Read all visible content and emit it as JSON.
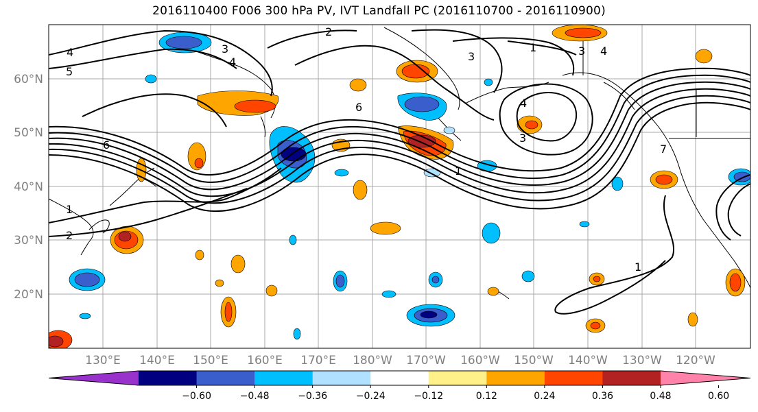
{
  "title": "2016110400 F006 300 hPa PV, IVT Landfall PC (2016110700 - 2016110900)",
  "lon_labels": [
    "130°E",
    "140°E",
    "150°E",
    "160°E",
    "170°E",
    "180°W",
    "170°W",
    "160°W",
    "150°W",
    "140°W",
    "130°W",
    "120°W"
  ],
  "lat_labels": [
    "60°N",
    "50°N",
    "40°N",
    "30°N",
    "20°N"
  ],
  "colorbar": {
    "ticks": [
      "−0.60",
      "−0.48",
      "−0.36",
      "−0.24",
      "−0.12",
      "0.12",
      "0.24",
      "0.36",
      "0.48",
      "0.60"
    ],
    "colors": [
      "#9932cc",
      "#000080",
      "#3a5fcd",
      "#00bfff",
      "#b0e2ff",
      "#ffffff",
      "#fff08a",
      "#ffa500",
      "#ff4500",
      "#b22222",
      "#ff82ab"
    ]
  },
  "contour_labels": [
    "4",
    "5",
    "3",
    "4",
    "2",
    "1",
    "3",
    "4",
    "6",
    "4",
    "3",
    "7",
    "6",
    "1",
    "2",
    "1",
    "1",
    "3"
  ]
}
